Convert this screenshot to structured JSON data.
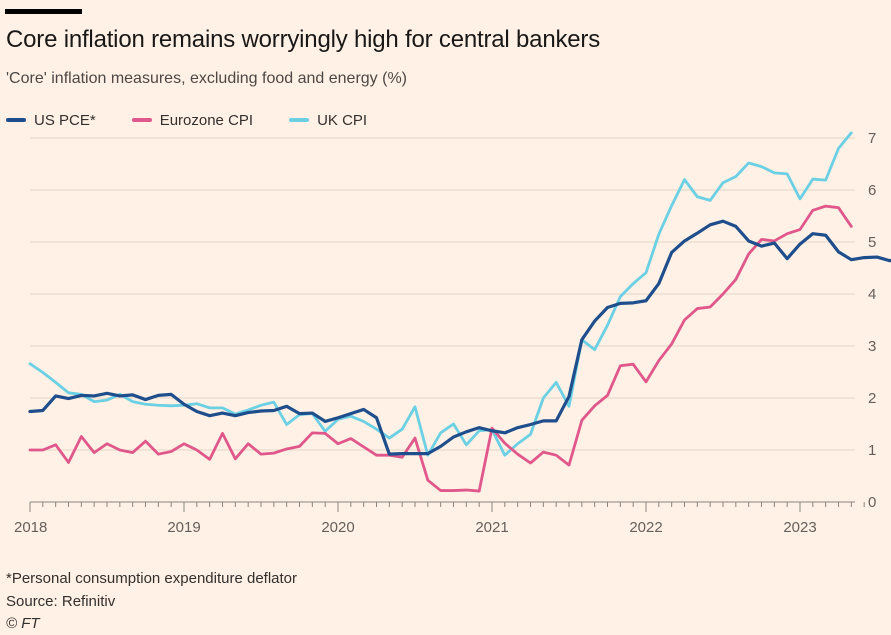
{
  "chart_data": {
    "type": "line",
    "title": "Core inflation remains worryingly high for central bankers",
    "subtitle": "'Core' inflation measures, excluding food and energy (%)",
    "xlabel": "",
    "ylabel": "",
    "x_start": "2018-01",
    "x_ticks": [
      "2018",
      "2019",
      "2020",
      "2021",
      "2022",
      "2023"
    ],
    "xlim": [
      "2018-01",
      "2023-05"
    ],
    "ylim": [
      0,
      7
    ],
    "y_ticks": [
      0,
      1,
      2,
      3,
      4,
      5,
      6,
      7
    ],
    "grid": true,
    "legend_position": "top-left",
    "series": [
      {
        "name": "US PCE*",
        "color": "#1f4e8c",
        "values": [
          1.74,
          1.76,
          2.04,
          1.99,
          2.05,
          2.04,
          2.09,
          2.04,
          2.06,
          1.97,
          2.05,
          2.07,
          1.88,
          1.74,
          1.66,
          1.71,
          1.66,
          1.72,
          1.75,
          1.76,
          1.84,
          1.7,
          1.71,
          1.55,
          1.62,
          1.7,
          1.78,
          1.62,
          0.92,
          0.93,
          0.93,
          0.93,
          1.07,
          1.25,
          1.35,
          1.43,
          1.37,
          1.33,
          1.43,
          1.49,
          1.56,
          1.56,
          2.03,
          3.12,
          3.48,
          3.74,
          3.82,
          3.83,
          3.87,
          4.2,
          4.8,
          5.02,
          5.17,
          5.33,
          5.4,
          5.3,
          5.02,
          4.92,
          4.98,
          4.68,
          4.96,
          5.16,
          5.13,
          4.81,
          4.66,
          4.7,
          4.71,
          4.64,
          4.7
        ]
      },
      {
        "name": "Eurozone CPI",
        "color": "#e0588b",
        "values": [
          1.0,
          1.0,
          1.1,
          0.76,
          1.26,
          0.95,
          1.12,
          1.0,
          0.95,
          1.17,
          0.92,
          0.97,
          1.12,
          1.0,
          0.82,
          1.32,
          0.83,
          1.12,
          0.92,
          0.94,
          1.02,
          1.07,
          1.33,
          1.32,
          1.12,
          1.22,
          1.06,
          0.9,
          0.9,
          0.86,
          1.23,
          0.42,
          0.22,
          0.22,
          0.23,
          0.21,
          1.42,
          1.13,
          0.92,
          0.75,
          0.96,
          0.9,
          0.71,
          1.57,
          1.85,
          2.05,
          2.62,
          2.65,
          2.31,
          2.72,
          3.04,
          3.5,
          3.72,
          3.75,
          4.0,
          4.28,
          4.77,
          5.05,
          5.02,
          5.16,
          5.24,
          5.61,
          5.69,
          5.66,
          5.3
        ]
      },
      {
        "name": "UK CPI",
        "color": "#6bd0e4",
        "values": [
          2.66,
          2.49,
          2.3,
          2.1,
          2.07,
          1.93,
          1.96,
          2.07,
          1.93,
          1.88,
          1.86,
          1.85,
          1.86,
          1.89,
          1.81,
          1.81,
          1.69,
          1.77,
          1.86,
          1.92,
          1.49,
          1.68,
          1.7,
          1.36,
          1.59,
          1.65,
          1.55,
          1.4,
          1.23,
          1.4,
          1.83,
          0.9,
          1.33,
          1.5,
          1.1,
          1.37,
          1.39,
          0.9,
          1.12,
          1.3,
          2.0,
          2.3,
          1.84,
          3.12,
          2.93,
          3.4,
          3.95,
          4.2,
          4.41,
          5.15,
          5.7,
          6.2,
          5.87,
          5.8,
          6.14,
          6.26,
          6.52,
          6.45,
          6.33,
          6.31,
          5.83,
          6.21,
          6.19,
          6.8,
          7.1
        ]
      }
    ]
  },
  "footnote": "*Personal consumption expenditure deflator",
  "source": "Source: Refinitiv",
  "copyright": "© FT"
}
